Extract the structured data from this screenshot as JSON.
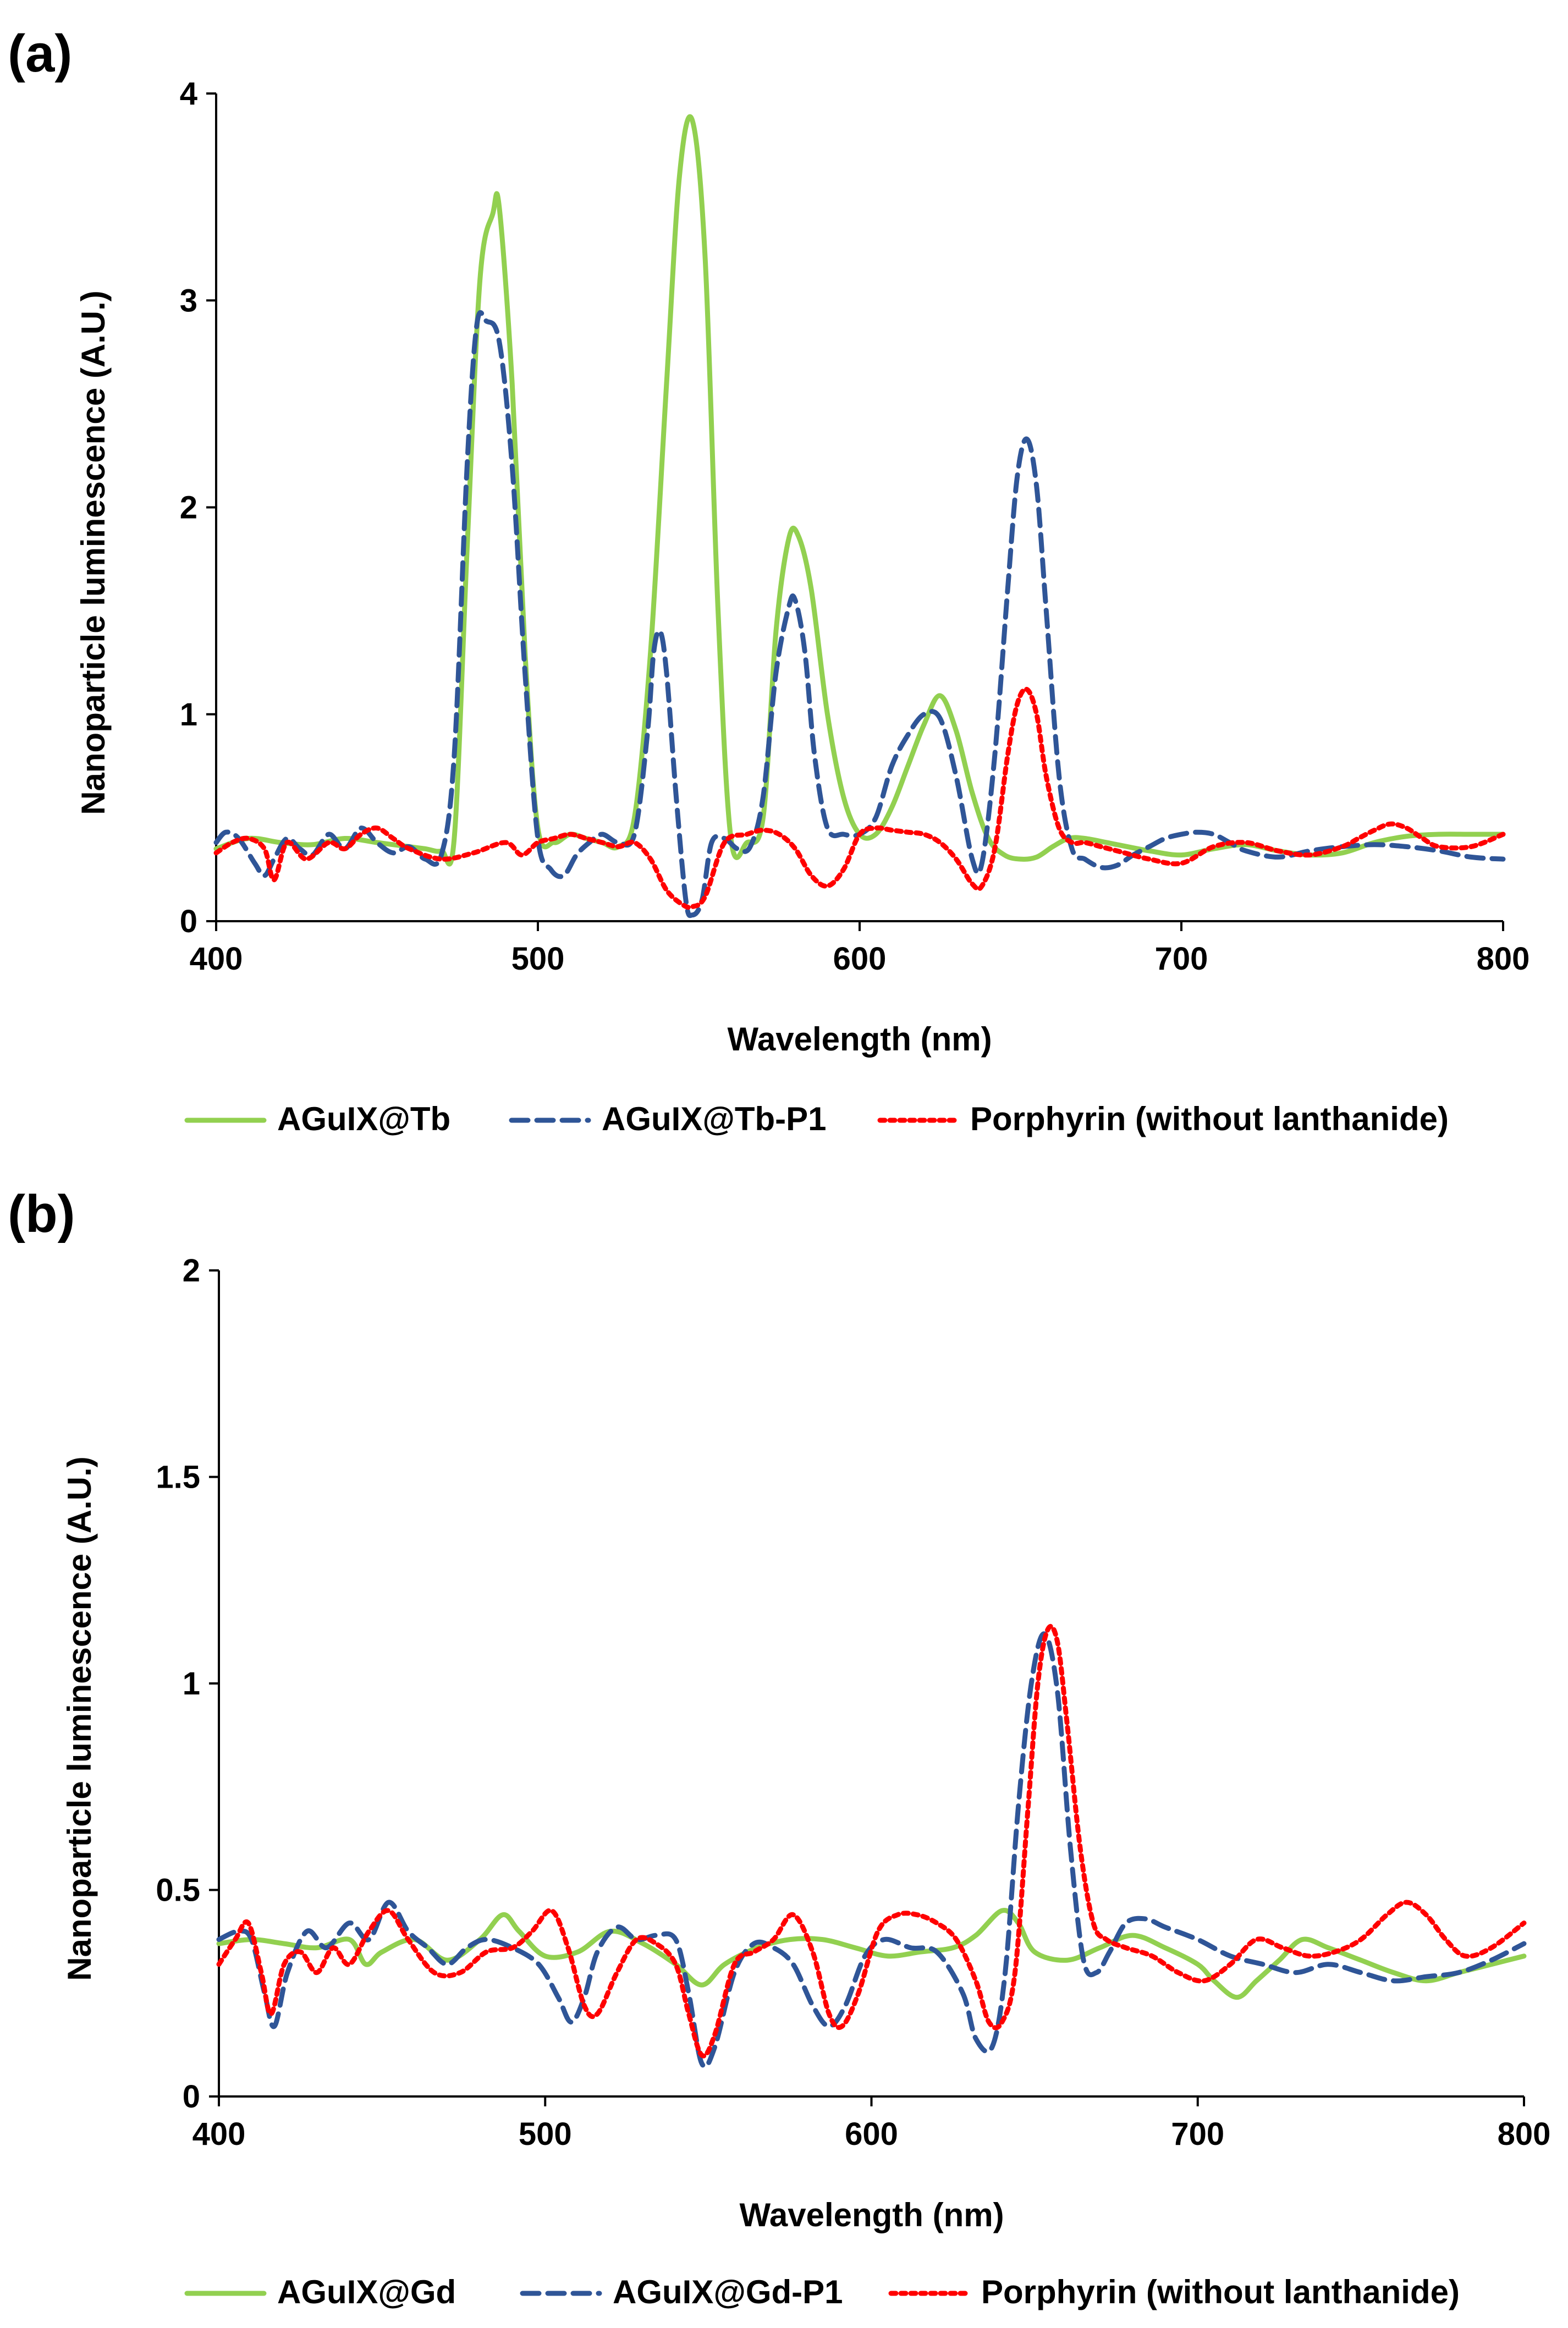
{
  "chart_data": [
    {
      "panel_label": "(a)",
      "type": "line",
      "xlabel": "Wavelength (nm)",
      "ylabel": "Nanoparticle luminescence (A.U.)",
      "xlim": [
        400,
        800
      ],
      "ylim": [
        0,
        4
      ],
      "xticks": [
        "400",
        "500",
        "600",
        "700",
        "800"
      ],
      "yticks": [
        "0",
        "1",
        "2",
        "3",
        "4"
      ],
      "grid": false,
      "legend_position": "bottom",
      "series": [
        {
          "name": "AGuIX@Tb",
          "color": "#92d050",
          "dash": "solid",
          "x": [
            400,
            410,
            420,
            430,
            440,
            450,
            460,
            465,
            470,
            474,
            478,
            482,
            486,
            488,
            492,
            496,
            500,
            505,
            510,
            515,
            520,
            525,
            530,
            535,
            540,
            544,
            548,
            552,
            556,
            560,
            565,
            570,
            574,
            578,
            581,
            585,
            590,
            595,
            600,
            605,
            610,
            615,
            620,
            625,
            630,
            635,
            640,
            645,
            650,
            655,
            660,
            665,
            670,
            680,
            690,
            700,
            710,
            720,
            730,
            740,
            750,
            760,
            770,
            780,
            790,
            800
          ],
          "y": [
            0.35,
            0.4,
            0.38,
            0.37,
            0.4,
            0.38,
            0.36,
            0.35,
            0.34,
            0.4,
            1.8,
            3.1,
            3.42,
            3.45,
            2.6,
            1.3,
            0.45,
            0.38,
            0.42,
            0.4,
            0.38,
            0.36,
            0.5,
            1.3,
            2.6,
            3.6,
            3.87,
            3.2,
            1.5,
            0.4,
            0.38,
            0.5,
            1.4,
            1.85,
            1.86,
            1.6,
            1.0,
            0.6,
            0.42,
            0.42,
            0.55,
            0.75,
            0.95,
            1.09,
            0.92,
            0.62,
            0.4,
            0.32,
            0.3,
            0.31,
            0.36,
            0.4,
            0.4,
            0.37,
            0.34,
            0.32,
            0.35,
            0.37,
            0.34,
            0.32,
            0.33,
            0.38,
            0.41,
            0.42,
            0.42,
            0.42
          ]
        },
        {
          "name": "AGuIX@Tb-P1",
          "color": "#2f5597",
          "dash": "dashed",
          "x": [
            400,
            403,
            407,
            412,
            415,
            418,
            422,
            426,
            430,
            435,
            440,
            445,
            450,
            455,
            460,
            465,
            470,
            474,
            478,
            481,
            484,
            488,
            492,
            496,
            500,
            504,
            508,
            512,
            516,
            520,
            525,
            530,
            534,
            536,
            538,
            540,
            543,
            546,
            548,
            551,
            554,
            558,
            562,
            566,
            570,
            574,
            578,
            580,
            583,
            586,
            590,
            595,
            600,
            605,
            610,
            615,
            620,
            625,
            630,
            635,
            638,
            642,
            646,
            649,
            652,
            655,
            658,
            662,
            666,
            670,
            675,
            680,
            685,
            690,
            695,
            700,
            705,
            710,
            715,
            720,
            730,
            740,
            750,
            760,
            770,
            780,
            790,
            800
          ],
          "y": [
            0.38,
            0.43,
            0.4,
            0.28,
            0.22,
            0.3,
            0.4,
            0.35,
            0.32,
            0.42,
            0.35,
            0.45,
            0.38,
            0.33,
            0.36,
            0.3,
            0.32,
            0.8,
            2.2,
            2.88,
            2.9,
            2.8,
            2.2,
            1.2,
            0.4,
            0.25,
            0.22,
            0.32,
            0.38,
            0.42,
            0.38,
            0.42,
            0.9,
            1.3,
            1.4,
            1.2,
            0.6,
            0.1,
            0.03,
            0.1,
            0.38,
            0.4,
            0.35,
            0.36,
            0.6,
            1.2,
            1.52,
            1.55,
            1.3,
            0.8,
            0.45,
            0.42,
            0.42,
            0.5,
            0.75,
            0.9,
            1.0,
            0.98,
            0.7,
            0.3,
            0.28,
            0.8,
            1.6,
            2.15,
            2.33,
            2.1,
            1.5,
            0.7,
            0.35,
            0.3,
            0.26,
            0.27,
            0.32,
            0.36,
            0.4,
            0.42,
            0.43,
            0.42,
            0.38,
            0.34,
            0.31,
            0.34,
            0.36,
            0.37,
            0.36,
            0.34,
            0.31,
            0.3
          ]
        },
        {
          "name": "Porphyrin (without lanthanide)",
          "color": "#ff0000",
          "dash": "dotted",
          "x": [
            400,
            405,
            410,
            415,
            418,
            422,
            428,
            435,
            440,
            445,
            450,
            455,
            460,
            470,
            480,
            490,
            495,
            500,
            505,
            510,
            515,
            520,
            525,
            530,
            535,
            540,
            545,
            548,
            552,
            558,
            565,
            570,
            575,
            580,
            585,
            590,
            595,
            600,
            605,
            610,
            615,
            620,
            625,
            630,
            635,
            638,
            642,
            646,
            649,
            652,
            655,
            658,
            662,
            666,
            670,
            675,
            680,
            690,
            700,
            710,
            720,
            730,
            740,
            750,
            755,
            760,
            765,
            770,
            775,
            780,
            790,
            800
          ],
          "y": [
            0.33,
            0.38,
            0.4,
            0.35,
            0.2,
            0.38,
            0.3,
            0.38,
            0.35,
            0.42,
            0.45,
            0.4,
            0.35,
            0.3,
            0.33,
            0.38,
            0.32,
            0.38,
            0.4,
            0.42,
            0.4,
            0.38,
            0.36,
            0.38,
            0.3,
            0.15,
            0.08,
            0.07,
            0.12,
            0.38,
            0.42,
            0.44,
            0.42,
            0.35,
            0.22,
            0.17,
            0.25,
            0.42,
            0.45,
            0.44,
            0.43,
            0.42,
            0.38,
            0.3,
            0.18,
            0.17,
            0.35,
            0.8,
            1.05,
            1.12,
            1.0,
            0.7,
            0.45,
            0.38,
            0.38,
            0.36,
            0.34,
            0.3,
            0.28,
            0.36,
            0.38,
            0.34,
            0.32,
            0.36,
            0.4,
            0.44,
            0.47,
            0.45,
            0.4,
            0.36,
            0.36,
            0.42
          ]
        }
      ]
    },
    {
      "panel_label": "(b)",
      "type": "line",
      "xlabel": "Wavelength (nm)",
      "ylabel": "Nanoparticle luminescence (A.U.)",
      "xlim": [
        400,
        800
      ],
      "ylim": [
        0,
        2
      ],
      "xticks": [
        "400",
        "500",
        "600",
        "700",
        "800"
      ],
      "yticks": [
        "0",
        "0.5",
        "1",
        "1.5",
        "2"
      ],
      "grid": false,
      "legend_position": "bottom",
      "series": [
        {
          "name": "AGuIX@Gd",
          "color": "#92d050",
          "dash": "solid",
          "x": [
            400,
            410,
            420,
            430,
            440,
            445,
            450,
            460,
            470,
            480,
            487,
            492,
            500,
            510,
            520,
            530,
            540,
            548,
            555,
            565,
            575,
            585,
            595,
            605,
            615,
            625,
            632,
            640,
            645,
            650,
            660,
            670,
            680,
            690,
            700,
            705,
            712,
            718,
            725,
            732,
            740,
            750,
            760,
            770,
            780,
            790,
            800
          ],
          "y": [
            0.37,
            0.38,
            0.37,
            0.36,
            0.38,
            0.32,
            0.35,
            0.38,
            0.33,
            0.38,
            0.44,
            0.4,
            0.34,
            0.35,
            0.4,
            0.37,
            0.32,
            0.27,
            0.32,
            0.36,
            0.38,
            0.38,
            0.36,
            0.34,
            0.35,
            0.36,
            0.39,
            0.45,
            0.42,
            0.35,
            0.33,
            0.36,
            0.39,
            0.36,
            0.32,
            0.28,
            0.24,
            0.28,
            0.33,
            0.38,
            0.36,
            0.33,
            0.3,
            0.28,
            0.3,
            0.32,
            0.34
          ]
        },
        {
          "name": "AGuIX@Gd-P1",
          "color": "#2f5597",
          "dash": "dashed",
          "x": [
            400,
            406,
            410,
            414,
            417,
            421,
            427,
            433,
            440,
            446,
            452,
            458,
            464,
            470,
            476,
            482,
            490,
            498,
            504,
            508,
            512,
            516,
            522,
            528,
            534,
            540,
            544,
            548,
            552,
            558,
            564,
            570,
            576,
            582,
            587,
            592,
            598,
            604,
            612,
            620,
            628,
            632,
            637,
            641,
            645,
            649,
            653,
            657,
            661,
            665,
            669,
            673,
            678,
            684,
            690,
            700,
            710,
            720,
            730,
            740,
            750,
            760,
            770,
            780,
            790,
            800
          ],
          "y": [
            0.38,
            0.4,
            0.38,
            0.25,
            0.17,
            0.3,
            0.4,
            0.36,
            0.42,
            0.38,
            0.47,
            0.4,
            0.36,
            0.32,
            0.36,
            0.38,
            0.36,
            0.32,
            0.24,
            0.18,
            0.24,
            0.35,
            0.41,
            0.38,
            0.39,
            0.38,
            0.25,
            0.08,
            0.12,
            0.3,
            0.37,
            0.36,
            0.32,
            0.22,
            0.17,
            0.22,
            0.34,
            0.38,
            0.36,
            0.35,
            0.25,
            0.14,
            0.12,
            0.3,
            0.7,
            1.0,
            1.12,
            0.98,
            0.6,
            0.33,
            0.3,
            0.35,
            0.42,
            0.43,
            0.41,
            0.38,
            0.34,
            0.32,
            0.3,
            0.32,
            0.3,
            0.28,
            0.29,
            0.3,
            0.33,
            0.37
          ]
        },
        {
          "name": "Porphyrin (without lanthanide)",
          "color": "#ff0000",
          "dash": "dotted",
          "x": [
            400,
            405,
            409,
            413,
            416,
            420,
            425,
            430,
            435,
            440,
            446,
            452,
            458,
            466,
            474,
            482,
            490,
            496,
            502,
            507,
            512,
            516,
            522,
            528,
            534,
            540,
            544,
            548,
            552,
            558,
            564,
            570,
            576,
            582,
            587,
            591,
            596,
            602,
            608,
            614,
            620,
            626,
            632,
            636,
            640,
            644,
            648,
            651,
            654,
            657,
            660,
            664,
            668,
            672,
            678,
            686,
            694,
            702,
            710,
            718,
            726,
            734,
            742,
            750,
            758,
            764,
            770,
            776,
            782,
            790,
            800
          ],
          "y": [
            0.32,
            0.38,
            0.42,
            0.3,
            0.2,
            0.32,
            0.35,
            0.3,
            0.36,
            0.32,
            0.4,
            0.45,
            0.38,
            0.3,
            0.3,
            0.35,
            0.36,
            0.4,
            0.45,
            0.36,
            0.22,
            0.2,
            0.3,
            0.38,
            0.37,
            0.32,
            0.2,
            0.1,
            0.15,
            0.32,
            0.35,
            0.38,
            0.44,
            0.35,
            0.2,
            0.17,
            0.25,
            0.4,
            0.44,
            0.44,
            0.42,
            0.38,
            0.28,
            0.18,
            0.18,
            0.3,
            0.7,
            1.0,
            1.13,
            1.1,
            0.9,
            0.6,
            0.42,
            0.38,
            0.36,
            0.34,
            0.3,
            0.28,
            0.32,
            0.38,
            0.36,
            0.34,
            0.35,
            0.38,
            0.44,
            0.47,
            0.44,
            0.38,
            0.34,
            0.36,
            0.42
          ]
        }
      ]
    }
  ]
}
